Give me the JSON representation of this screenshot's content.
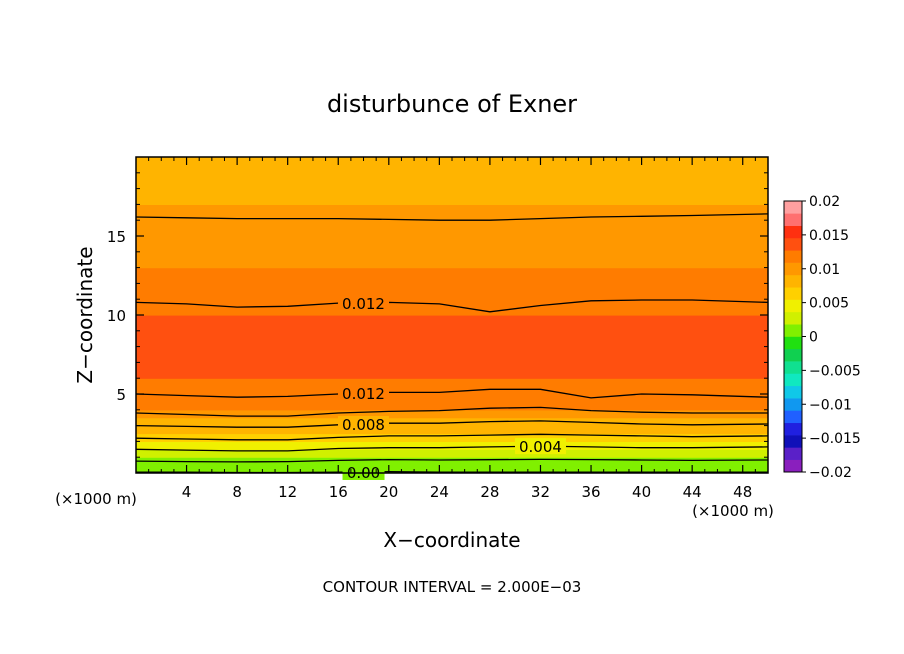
{
  "chart_data": {
    "type": "heatmap",
    "title": "disturbunce of Exner",
    "xlabel": "X−coordinate",
    "ylabel": "Z−coordinate",
    "x_unit_left": "(×1000 m)",
    "x_unit_right": "(×1000 m)",
    "xlim": [
      0,
      50
    ],
    "ylim": [
      0,
      20
    ],
    "x_ticks": [
      4,
      8,
      12,
      16,
      20,
      24,
      28,
      32,
      36,
      40,
      44,
      48
    ],
    "y_ticks": [
      5,
      10,
      15
    ],
    "footer": "CONTOUR INTERVAL = 2.000E−03",
    "contour_interval": 0.002,
    "colorbar": {
      "range": [
        -0.02,
        0.02
      ],
      "tick_values": [
        0.02,
        0.015,
        0.01,
        0.005,
        0,
        -0.005,
        -0.01,
        -0.015,
        -0.02
      ],
      "tick_labels": [
        "0.02",
        "0.015",
        "0.01",
        "0.005",
        "0",
        "−0.005",
        "−0.01",
        "−0.015",
        "−0.02"
      ],
      "colors": [
        "#8a1fbe",
        "#5a20c8",
        "#1010b8",
        "#2020e0",
        "#2060ff",
        "#1098f0",
        "#10c8e8",
        "#10e8c0",
        "#10e090",
        "#10d050",
        "#20e010",
        "#80f000",
        "#d0f000",
        "#f0f000",
        "#ffd000",
        "#ffb400",
        "#ff9800",
        "#ff7c00",
        "#ff5010",
        "#ff3010",
        "#ff7070",
        "#ffa0a0"
      ]
    },
    "profile": {
      "z": [
        0,
        0.5,
        1.0,
        1.5,
        2.0,
        2.5,
        3.0,
        3.5,
        4.0,
        4.5,
        5.0,
        6.0,
        7.0,
        8.0,
        9.0,
        10.0,
        11.0,
        12.0,
        13.0,
        14.0,
        15.0,
        16.0,
        17.0,
        18.0,
        19.0,
        20.0
      ],
      "value": [
        0.0005,
        0.0012,
        0.0024,
        0.0038,
        0.0052,
        0.0066,
        0.008,
        0.0094,
        0.0106,
        0.0114,
        0.012,
        0.0131,
        0.0136,
        0.0137,
        0.0134,
        0.0128,
        0.0121,
        0.0114,
        0.0109,
        0.0104,
        0.0099,
        0.0094,
        0.0088,
        0.0083,
        0.0078,
        0.0074
      ]
    },
    "contour_lines": [
      {
        "level": 0.0,
        "label": "0.00",
        "label_x": 18,
        "z": [
          0.05,
          0.05,
          0.03,
          0.03,
          0.05,
          0.08,
          0.06,
          0.05,
          0.06,
          0.06,
          0.06,
          0.05,
          0.05
        ]
      },
      {
        "level": 0.002,
        "label": "",
        "label_x": null,
        "z": [
          0.75,
          0.72,
          0.7,
          0.72,
          0.8,
          0.85,
          0.82,
          0.84,
          0.86,
          0.85,
          0.82,
          0.8,
          0.82
        ]
      },
      {
        "level": 0.004,
        "label": "0.004",
        "label_x": 32,
        "z": [
          1.5,
          1.45,
          1.4,
          1.4,
          1.55,
          1.6,
          1.6,
          1.65,
          1.7,
          1.65,
          1.6,
          1.6,
          1.65
        ]
      },
      {
        "level": 0.006,
        "label": "",
        "label_x": null,
        "z": [
          2.2,
          2.15,
          2.1,
          2.1,
          2.25,
          2.35,
          2.35,
          2.4,
          2.45,
          2.4,
          2.35,
          2.3,
          2.35
        ]
      },
      {
        "level": 0.008,
        "label": "0.008",
        "label_x": 18,
        "z": [
          3.0,
          2.95,
          2.9,
          2.9,
          3.05,
          3.15,
          3.15,
          3.25,
          3.3,
          3.2,
          3.1,
          3.05,
          3.1
        ]
      },
      {
        "level": 0.01,
        "label": "",
        "label_x": null,
        "z": [
          3.8,
          3.7,
          3.6,
          3.6,
          3.8,
          3.9,
          3.95,
          4.1,
          4.15,
          3.95,
          3.85,
          3.8,
          3.8
        ]
      },
      {
        "level": 0.012,
        "label": "0.012",
        "label_x": 18,
        "z": [
          5.0,
          4.9,
          4.8,
          4.85,
          5.0,
          5.1,
          5.1,
          5.3,
          5.3,
          4.75,
          5.0,
          4.95,
          4.8
        ]
      },
      {
        "level": 0.012,
        "label": "0.012",
        "label_x": 18,
        "z": [
          10.8,
          10.7,
          10.5,
          10.55,
          10.75,
          10.8,
          10.7,
          10.2,
          10.6,
          10.9,
          10.95,
          10.95,
          10.8
        ]
      },
      {
        "level": 0.01,
        "label": "",
        "label_x": null,
        "z": [
          16.2,
          16.15,
          16.1,
          16.1,
          16.1,
          16.05,
          16.0,
          16.0,
          16.1,
          16.2,
          16.25,
          16.3,
          16.4
        ]
      }
    ],
    "contour_x": [
      0,
      4,
      8,
      12,
      16,
      20,
      24,
      28,
      32,
      36,
      40,
      44,
      50
    ]
  }
}
